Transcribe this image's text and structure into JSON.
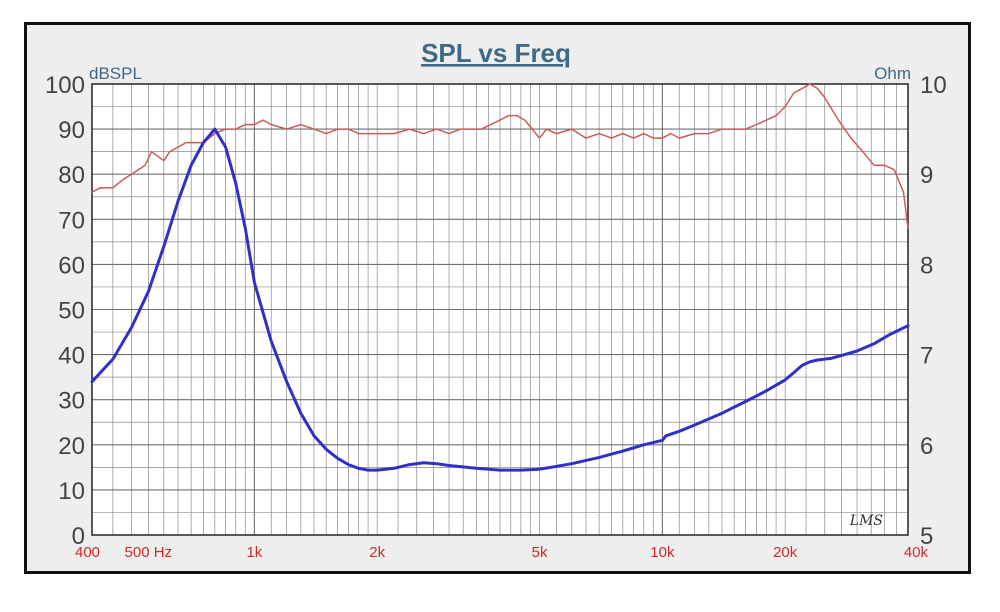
{
  "chart_data": {
    "type": "line",
    "title": "SPL vs Freq",
    "left_axis": {
      "unit": "dBSPL",
      "ylim": [
        0,
        100
      ],
      "ticks": [
        0,
        10,
        20,
        30,
        40,
        50,
        60,
        70,
        80,
        90,
        100
      ]
    },
    "right_axis": {
      "unit": "Ohm",
      "ylim": [
        5,
        10
      ],
      "ticks": [
        5,
        6,
        7,
        8,
        9,
        10
      ]
    },
    "x_axis": {
      "scale": "log",
      "xlim": [
        400,
        40000
      ],
      "tick_labels": [
        {
          "value": 400,
          "label": "400"
        },
        {
          "value": 500,
          "label": "500 Hz"
        },
        {
          "value": 1000,
          "label": "1k"
        },
        {
          "value": 2000,
          "label": "2k"
        },
        {
          "value": 5000,
          "label": "5k"
        },
        {
          "value": 10000,
          "label": "10k"
        },
        {
          "value": 20000,
          "label": "20k"
        },
        {
          "value": 40000,
          "label": "40k"
        }
      ]
    },
    "grid": true,
    "maker_mark": "LMS",
    "series": [
      {
        "axis": "left",
        "color": "#cc5a5a",
        "x": [
          400,
          420,
          450,
          480,
          500,
          540,
          560,
          600,
          620,
          650,
          680,
          700,
          750,
          800,
          850,
          900,
          950,
          1000,
          1050,
          1100,
          1200,
          1300,
          1400,
          1500,
          1600,
          1700,
          1800,
          1900,
          2000,
          2200,
          2400,
          2600,
          2800,
          3000,
          3200,
          3400,
          3600,
          3800,
          4000,
          4200,
          4400,
          4600,
          4800,
          5000,
          5200,
          5500,
          6000,
          6500,
          7000,
          7500,
          8000,
          8500,
          9000,
          9500,
          10000,
          10500,
          11000,
          12000,
          13000,
          14000,
          15000,
          16000,
          17000,
          18000,
          19000,
          20000,
          21000,
          22000,
          23000,
          24000,
          25000,
          27000,
          29000,
          31000,
          33000,
          35000,
          37000,
          39000,
          40000
        ],
        "y": [
          76,
          77,
          77,
          79,
          80,
          82,
          85,
          83,
          85,
          86,
          87,
          87,
          87,
          89,
          90,
          90,
          91,
          91,
          92,
          91,
          90,
          91,
          90,
          89,
          90,
          90,
          89,
          89,
          89,
          89,
          90,
          89,
          90,
          89,
          90,
          90,
          90,
          91,
          92,
          93,
          93,
          92,
          90,
          88,
          90,
          89,
          90,
          88,
          89,
          88,
          89,
          88,
          89,
          88,
          88,
          89,
          88,
          89,
          89,
          90,
          90,
          90,
          91,
          92,
          93,
          95,
          98,
          99,
          100,
          99,
          97,
          92,
          88,
          85,
          82,
          82,
          81,
          76,
          68
        ]
      },
      {
        "axis": "right",
        "color": "#3030c8",
        "x": [
          400,
          450,
          500,
          550,
          600,
          650,
          700,
          750,
          800,
          850,
          900,
          950,
          1000,
          1100,
          1200,
          1300,
          1400,
          1500,
          1600,
          1700,
          1800,
          1900,
          2000,
          2200,
          2400,
          2600,
          2800,
          3000,
          3500,
          4000,
          4500,
          5000,
          5500,
          6000,
          7000,
          8000,
          9000,
          10000,
          10200,
          11000,
          12000,
          14000,
          16000,
          18000,
          20000,
          21000,
          22000,
          23000,
          24000,
          26000,
          28000,
          30000,
          33000,
          36000,
          40000
        ],
        "y": [
          6.7,
          6.95,
          7.3,
          7.7,
          8.2,
          8.7,
          9.1,
          9.35,
          9.5,
          9.3,
          8.9,
          8.4,
          7.8,
          7.15,
          6.7,
          6.35,
          6.1,
          5.95,
          5.85,
          5.78,
          5.74,
          5.72,
          5.72,
          5.74,
          5.78,
          5.8,
          5.79,
          5.77,
          5.74,
          5.72,
          5.72,
          5.73,
          5.76,
          5.79,
          5.86,
          5.93,
          6.0,
          6.05,
          6.1,
          6.15,
          6.22,
          6.35,
          6.48,
          6.6,
          6.72,
          6.8,
          6.88,
          6.92,
          6.94,
          6.96,
          7.0,
          7.04,
          7.12,
          7.22,
          7.32
        ]
      }
    ]
  }
}
